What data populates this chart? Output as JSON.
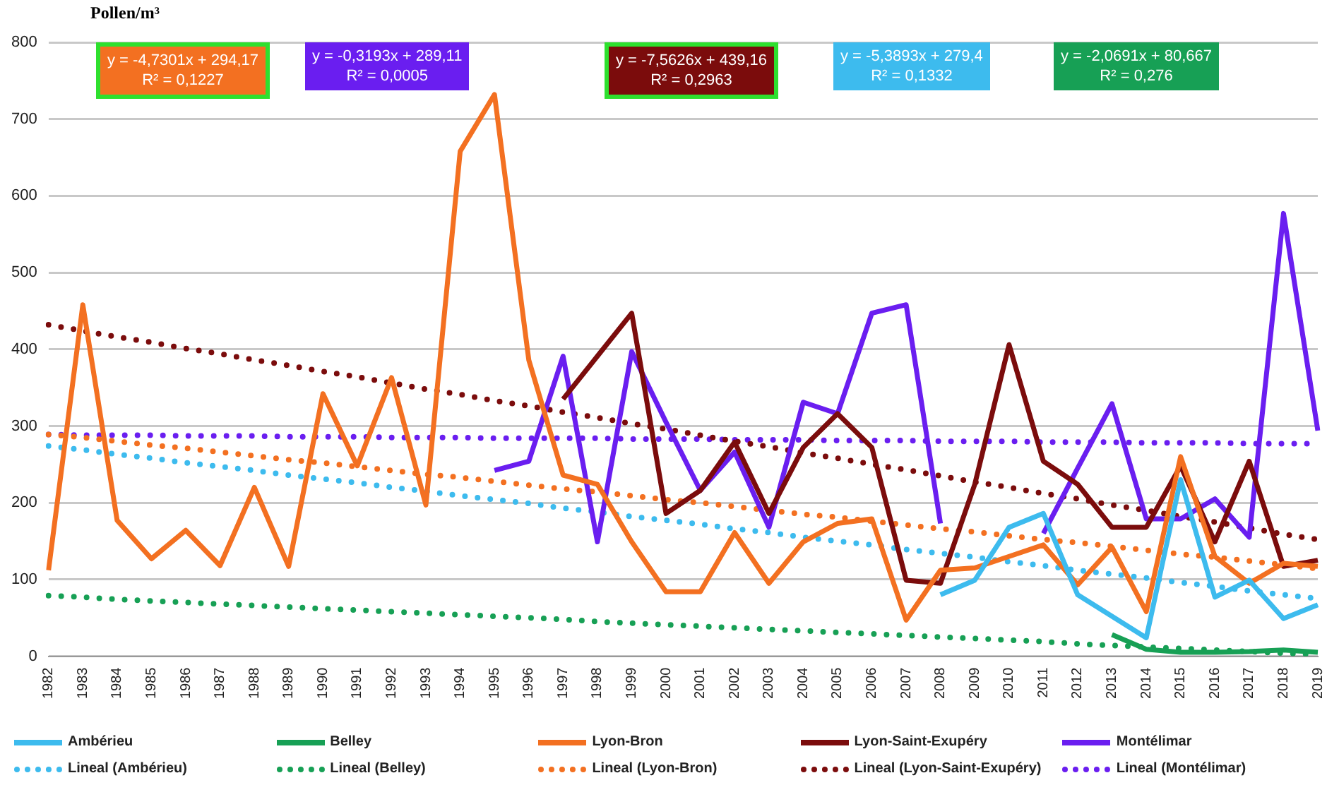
{
  "chart_data": {
    "type": "line",
    "ylabel": "Pollen/m³",
    "categories": [
      "1982",
      "1983",
      "1984",
      "1985",
      "1986",
      "1987",
      "1988",
      "1989",
      "1990",
      "1991",
      "1992",
      "1993",
      "1994",
      "1995",
      "1996",
      "1997",
      "1998",
      "1999",
      "2000",
      "2001",
      "2002",
      "2003",
      "2004",
      "2005",
      "2006",
      "2007",
      "2008",
      "2009",
      "2010",
      "2011",
      "2012",
      "2013",
      "2014",
      "2015",
      "2016",
      "2017",
      "2018",
      "2019"
    ],
    "series": [
      {
        "name": "Ambérieu",
        "color": "#3dbbee",
        "values": [
          null,
          null,
          null,
          null,
          null,
          null,
          null,
          null,
          null,
          null,
          null,
          null,
          null,
          null,
          null,
          null,
          null,
          null,
          null,
          null,
          null,
          null,
          null,
          null,
          null,
          null,
          80,
          99,
          168,
          186,
          80,
          52,
          24,
          230,
          77,
          99,
          49,
          67
        ]
      },
      {
        "name": "Belley",
        "color": "#17a055",
        "values": [
          null,
          null,
          null,
          null,
          null,
          null,
          null,
          null,
          null,
          null,
          null,
          null,
          null,
          null,
          null,
          null,
          null,
          null,
          null,
          null,
          null,
          null,
          null,
          null,
          null,
          null,
          null,
          null,
          null,
          null,
          null,
          28,
          9,
          5,
          5,
          6,
          8,
          5
        ]
      },
      {
        "name": "Lyon-Bron",
        "color": "#f37021",
        "values": [
          112,
          458,
          177,
          127,
          164,
          118,
          220,
          117,
          342,
          248,
          363,
          197,
          658,
          732,
          386,
          236,
          224,
          149,
          84,
          84,
          161,
          95,
          149,
          173,
          179,
          47,
          112,
          115,
          130,
          145,
          93,
          142,
          58,
          260,
          130,
          95,
          121,
          117
        ]
      },
      {
        "name": "Lyon-Saint-Exupéry",
        "color": "#7b0c0c",
        "values": [
          null,
          null,
          null,
          null,
          null,
          null,
          null,
          null,
          null,
          null,
          null,
          null,
          null,
          null,
          null,
          335,
          391,
          447,
          186,
          216,
          279,
          186,
          272,
          316,
          272,
          99,
          95,
          224,
          406,
          254,
          224,
          168,
          168,
          248,
          149,
          254,
          117,
          125
        ]
      },
      {
        "name": "Montélimar",
        "color": "#6a1ef0",
        "values": [
          null,
          null,
          null,
          null,
          null,
          null,
          null,
          null,
          null,
          null,
          null,
          null,
          null,
          242,
          254,
          391,
          149,
          397,
          305,
          216,
          266,
          168,
          331,
          316,
          447,
          458,
          173,
          null,
          null,
          160,
          245,
          329,
          179,
          179,
          205,
          155,
          577,
          294
        ]
      },
      {
        "name": "Lineal (Ambérieu)",
        "type": "line",
        "line_style": "dotted",
        "color": "#3dbbee",
        "values": [
          274,
          269,
          263,
          258,
          252,
          247,
          242,
          236,
          231,
          226,
          220,
          215,
          209,
          204,
          199,
          193,
          188,
          182,
          177,
          172,
          166,
          161,
          155,
          150,
          145,
          139,
          134,
          129,
          123,
          118,
          112,
          107,
          102,
          96,
          91,
          85,
          80,
          75
        ]
      },
      {
        "name": "Lineal (Belley)",
        "type": "line",
        "line_style": "dotted",
        "color": "#17a055",
        "values": [
          79,
          77,
          74,
          72,
          70,
          68,
          66,
          64,
          62,
          60,
          58,
          56,
          54,
          52,
          50,
          48,
          45,
          43,
          41,
          39,
          37,
          35,
          33,
          31,
          29,
          27,
          25,
          23,
          21,
          19,
          16,
          14,
          12,
          10,
          8,
          6,
          4,
          2
        ]
      },
      {
        "name": "Lineal (Lyon-Bron)",
        "type": "line",
        "line_style": "dotted",
        "color": "#f37021",
        "values": [
          289,
          285,
          280,
          275,
          271,
          266,
          261,
          256,
          252,
          247,
          242,
          237,
          233,
          228,
          223,
          218,
          214,
          209,
          204,
          200,
          195,
          190,
          185,
          181,
          176,
          171,
          166,
          162,
          157,
          152,
          148,
          143,
          138,
          133,
          129,
          124,
          119,
          114
        ]
      },
      {
        "name": "Lineal (Lyon-Saint-Exupéry)",
        "type": "line",
        "line_style": "dotted",
        "color": "#7b0c0c",
        "values": [
          432,
          424,
          416,
          409,
          401,
          394,
          386,
          379,
          371,
          364,
          356,
          348,
          341,
          333,
          326,
          318,
          311,
          303,
          296,
          288,
          280,
          273,
          265,
          258,
          250,
          243,
          235,
          227,
          220,
          212,
          205,
          197,
          190,
          182,
          175,
          167,
          159,
          152
        ]
      },
      {
        "name": "Lineal (Montélimar)",
        "type": "line",
        "line_style": "dotted",
        "color": "#6a1ef0",
        "values": [
          289,
          288,
          288,
          288,
          287,
          287,
          287,
          286,
          286,
          286,
          285,
          285,
          285,
          284,
          284,
          284,
          284,
          283,
          283,
          283,
          282,
          282,
          282,
          281,
          281,
          281,
          280,
          280,
          280,
          279,
          279,
          279,
          278,
          278,
          278,
          277,
          277,
          277
        ]
      }
    ],
    "annotations": [
      "y = -4,7301x + 294,17\nR² = 0,1227",
      "y = -0,3193x + 289,11\nR² = 0,0005",
      "y = -7,5626x + 439,16\nR² = 0,2963",
      "y = -5,3893x + 279,4\nR² = 0,1332",
      "y = -2,0691x + 80,667\nR² = 0,276"
    ],
    "ylim": [
      0,
      800
    ],
    "yticks": [
      0,
      100,
      200,
      300,
      400,
      500,
      600,
      700,
      800
    ],
    "grid": "y",
    "legend": "bottom",
    "marker": "none",
    "line_style": "solid"
  }
}
